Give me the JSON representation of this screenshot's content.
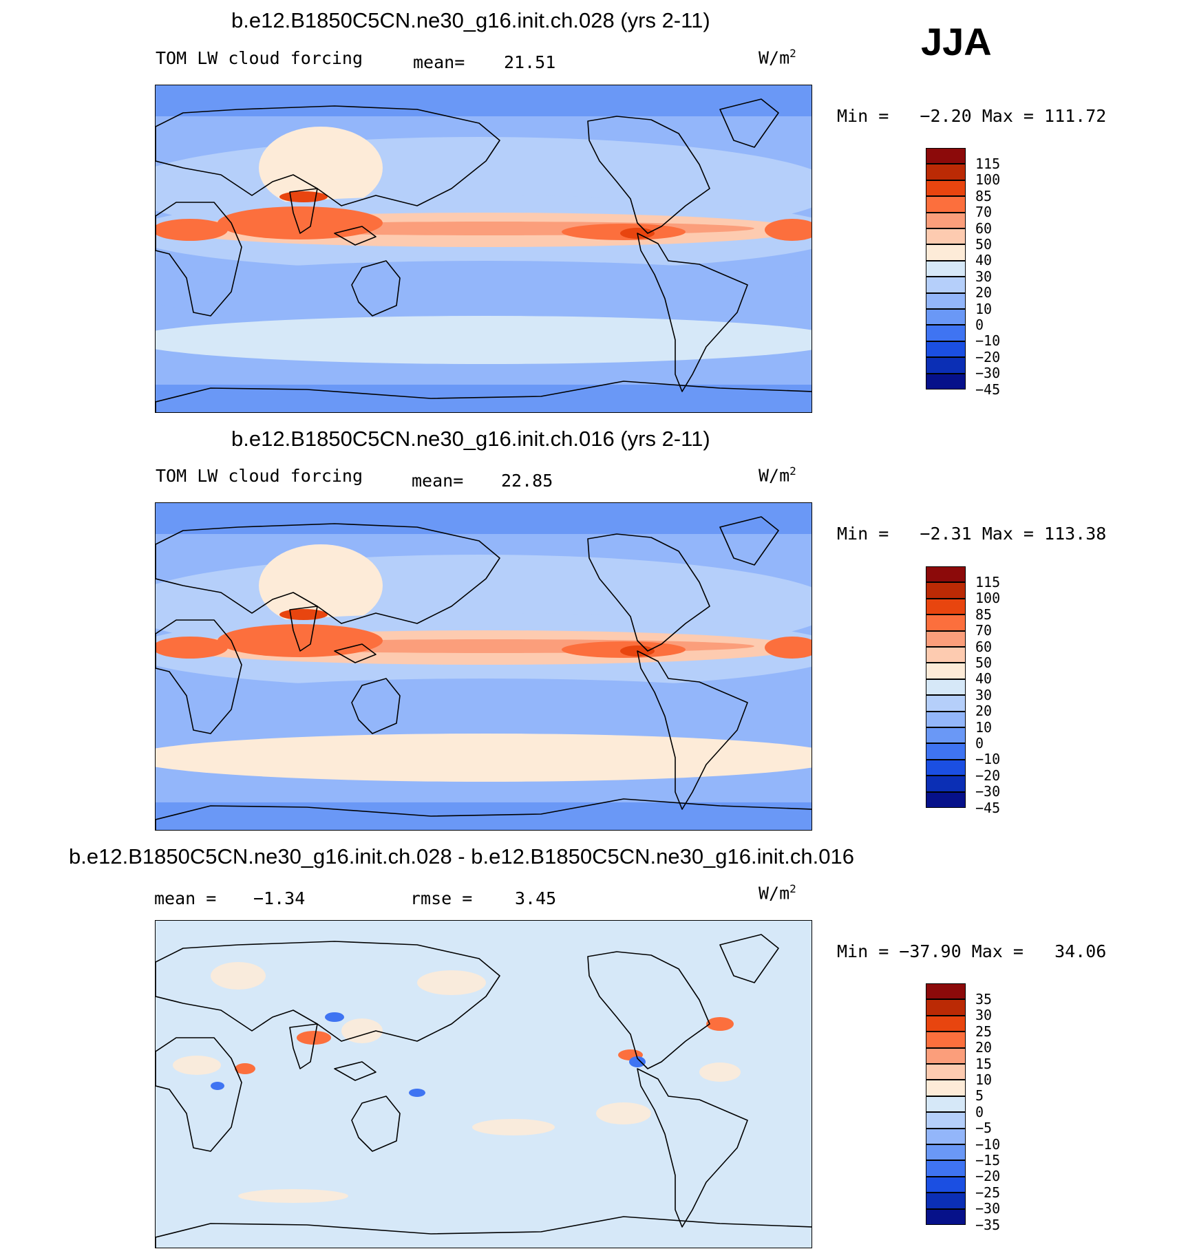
{
  "season": "JJA",
  "units_main": "W/m",
  "units_sup": "2",
  "panels": [
    {
      "title": "b.e12.B1850C5CN.ne30_g16.init.ch.028 (yrs 2-11)",
      "left_label": "TOM LW cloud forcing",
      "mean_label": "mean=",
      "mean_value": "21.51",
      "min_max": "Min =   −2.20 Max = 111.72",
      "colorbar": {
        "colors": [
          "#8c0a0a",
          "#bb2a05",
          "#e8450f",
          "#fc6f3d",
          "#fb9e7b",
          "#fdcbb0",
          "#fdebd8",
          "#d6e8f8",
          "#b5cffa",
          "#93b6fa",
          "#6a98f6",
          "#3f74f2",
          "#1b4fe2",
          "#0b2fb5",
          "#06118a"
        ],
        "labels": [
          "115",
          "100",
          "85",
          "70",
          "60",
          "50",
          "40",
          "30",
          "20",
          "10",
          "0",
          "−10",
          "−20",
          "−30",
          "−45"
        ]
      }
    },
    {
      "title": "b.e12.B1850C5CN.ne30_g16.init.ch.016 (yrs 2-11)",
      "left_label": "TOM LW cloud forcing",
      "mean_label": "mean=",
      "mean_value": "22.85",
      "min_max": "Min =   −2.31 Max = 113.38",
      "colorbar": {
        "colors": [
          "#8c0a0a",
          "#bb2a05",
          "#e8450f",
          "#fc6f3d",
          "#fb9e7b",
          "#fdcbb0",
          "#fdebd8",
          "#d6e8f8",
          "#b5cffa",
          "#93b6fa",
          "#6a98f6",
          "#3f74f2",
          "#1b4fe2",
          "#0b2fb5",
          "#06118a"
        ],
        "labels": [
          "115",
          "100",
          "85",
          "70",
          "60",
          "50",
          "40",
          "30",
          "20",
          "10",
          "0",
          "−10",
          "−20",
          "−30",
          "−45"
        ]
      }
    },
    {
      "title": "b.e12.B1850C5CN.ne30_g16.init.ch.028 - b.e12.B1850C5CN.ne30_g16.init.ch.016",
      "mean_label": "mean =",
      "mean_value": "−1.34",
      "rmse_label": "rmse =",
      "rmse_value": "3.45",
      "min_max": "Min = −37.90 Max =   34.06",
      "colorbar": {
        "colors": [
          "#8c0a0a",
          "#bb2a05",
          "#e8450f",
          "#fc6f3d",
          "#fb9e7b",
          "#fdcbb0",
          "#fdebd8",
          "#d6e8f8",
          "#b5cffa",
          "#93b6fa",
          "#6a98f6",
          "#3f74f2",
          "#1b4fe2",
          "#0b2fb5",
          "#06118a"
        ],
        "labels": [
          "35",
          "30",
          "25",
          "20",
          "15",
          "10",
          "5",
          "0",
          "−5",
          "−10",
          "−15",
          "−20",
          "−25",
          "−30",
          "−35"
        ]
      }
    }
  ]
}
